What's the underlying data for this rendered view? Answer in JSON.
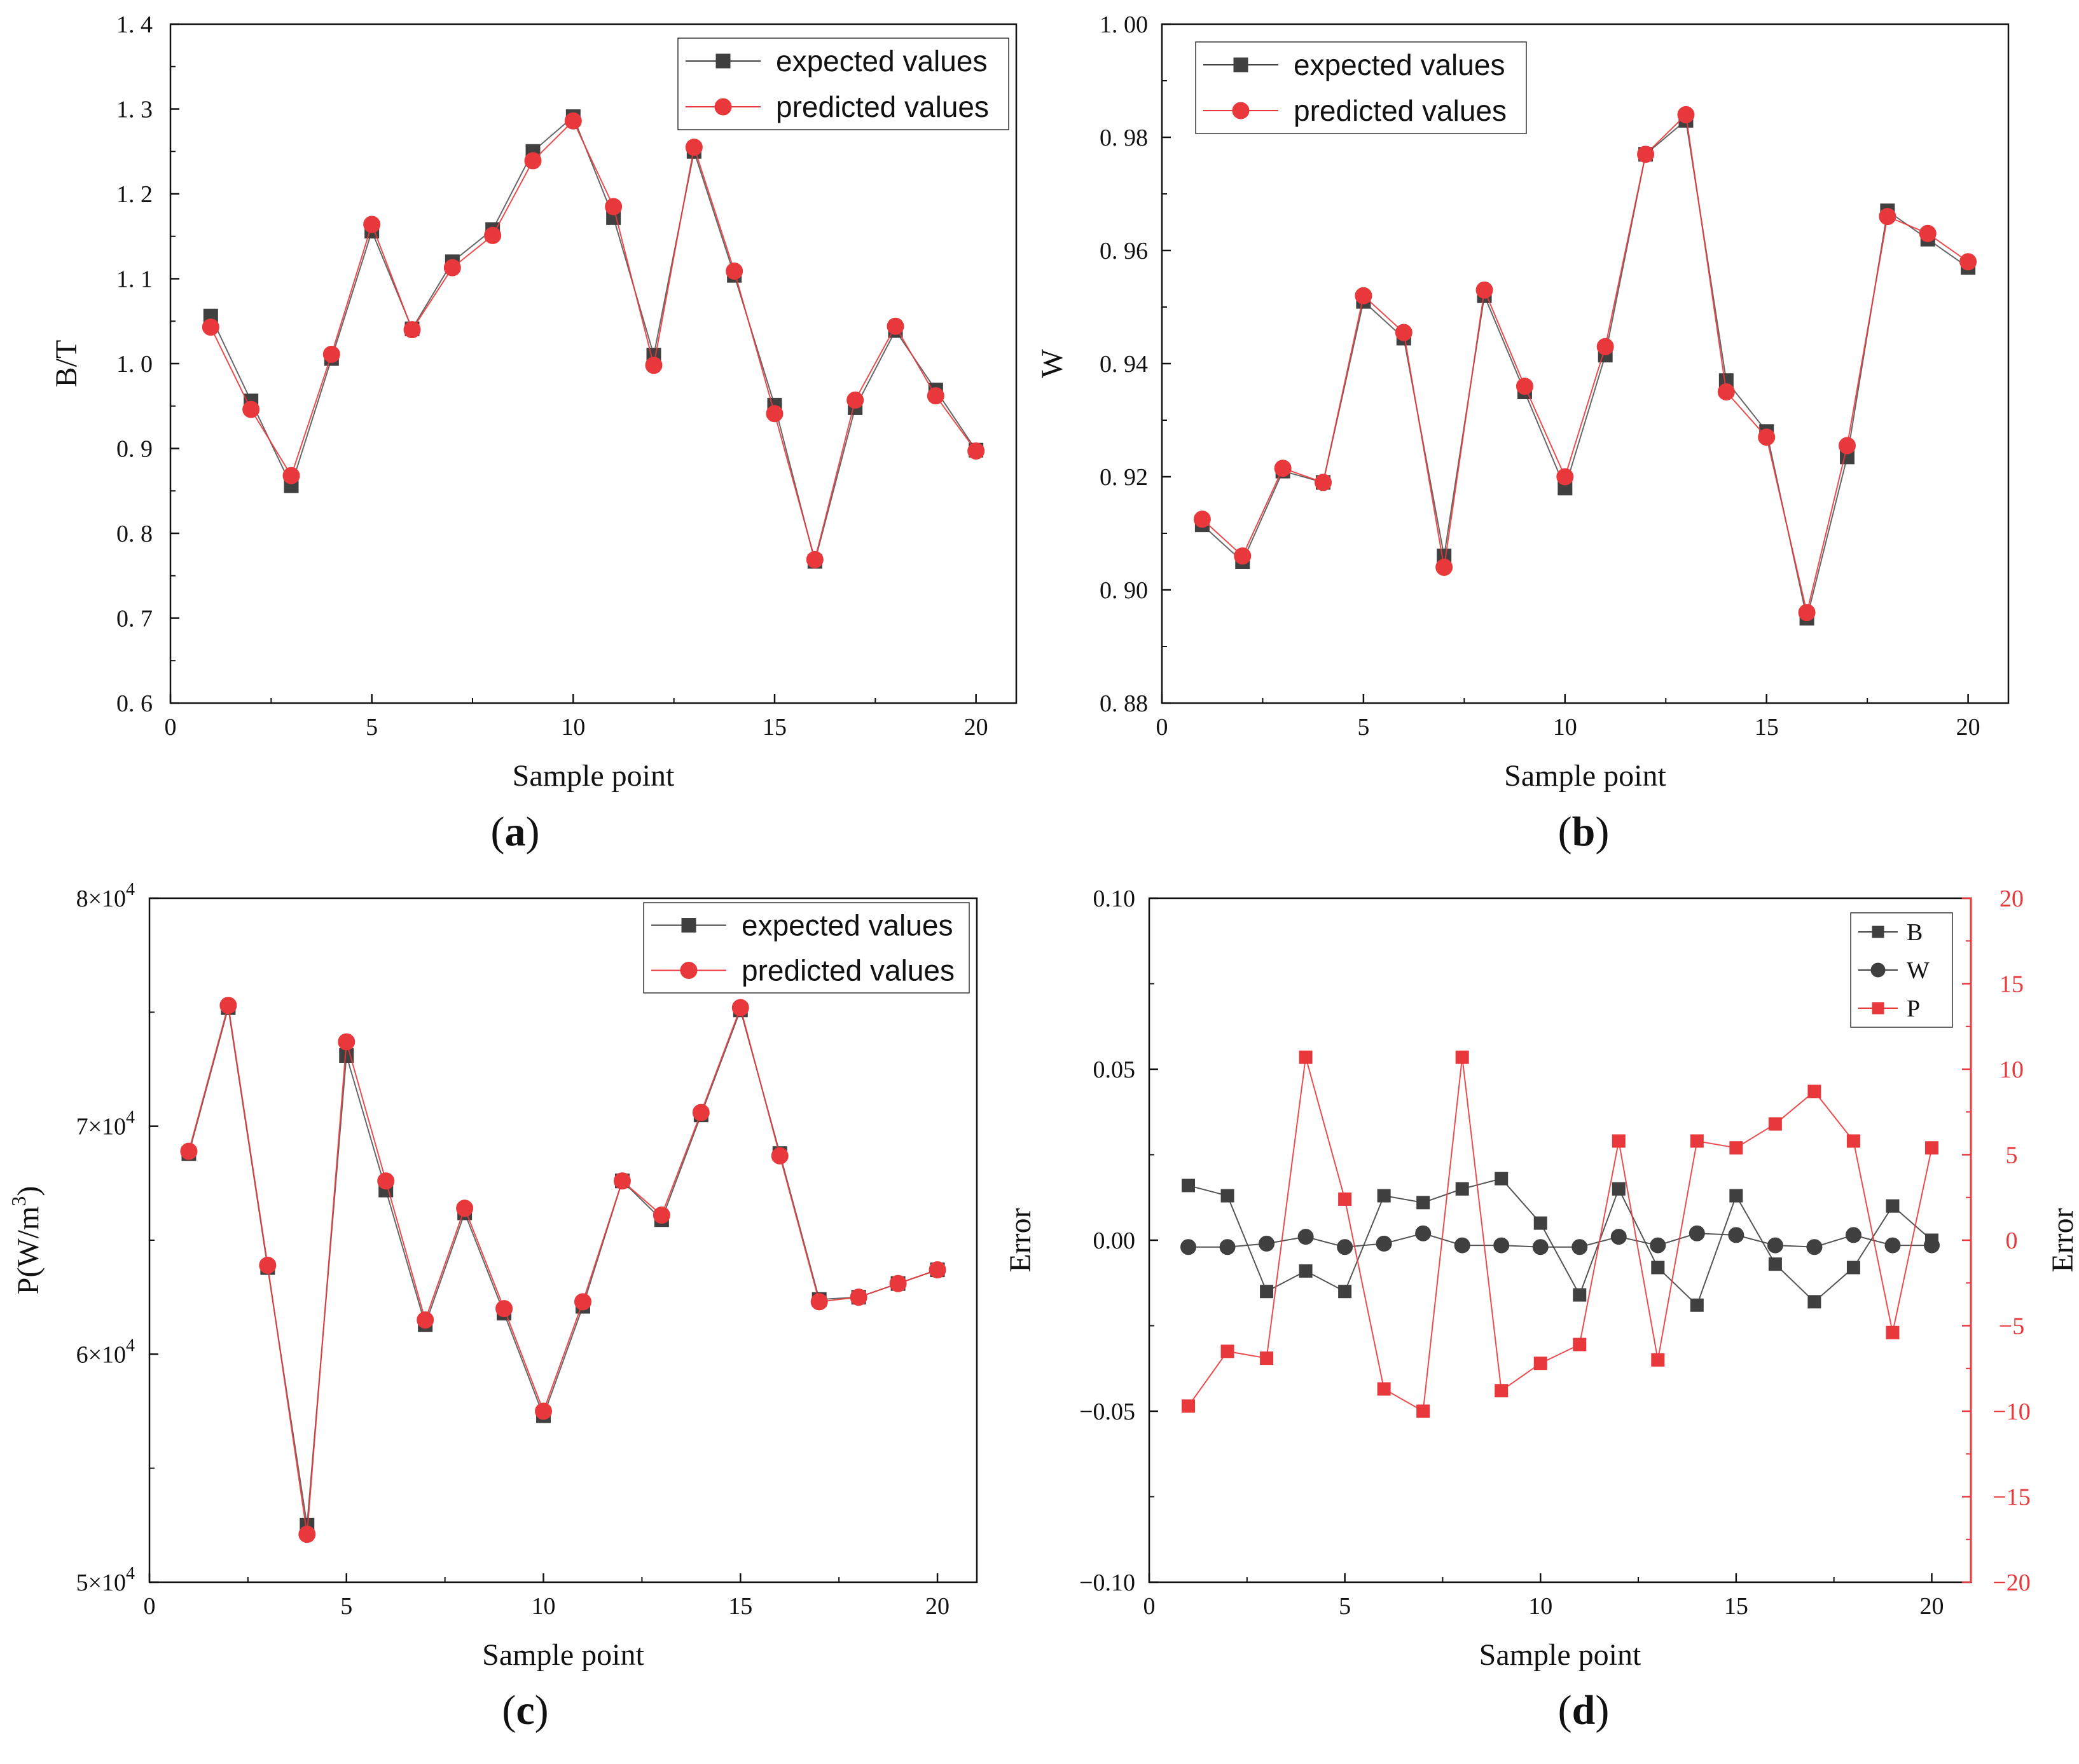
{
  "colors": {
    "expected": "#404040",
    "predicted": "#e8383b",
    "axis": "#111111"
  },
  "chart_data": [
    {
      "id": "a",
      "type": "line",
      "panel_label": {
        "open": "(",
        "letter": "a",
        "close": ")"
      },
      "xlabel": "Sample point",
      "ylabel": "B/T",
      "xlim": [
        0,
        21
      ],
      "ylim": [
        0.6,
        1.4
      ],
      "xticks": [
        0,
        5,
        10,
        15,
        20
      ],
      "xtick_labels": [
        "0",
        "5",
        "10",
        "15",
        "20"
      ],
      "yticks": [
        0.6,
        0.7,
        0.8,
        0.9,
        1.0,
        1.1,
        1.2,
        1.3,
        1.4
      ],
      "ytick_labels": [
        "0. 6",
        "0. 7",
        "0. 8",
        "0. 9",
        "1. 0",
        "1. 1",
        "1. 2",
        "1. 3",
        "1. 4"
      ],
      "legend": {
        "position": "top-right",
        "entries": [
          "expected values",
          "predicted values"
        ]
      },
      "x": [
        1,
        2,
        3,
        4,
        5,
        6,
        7,
        8,
        9,
        10,
        11,
        12,
        13,
        14,
        15,
        16,
        17,
        18,
        19,
        20
      ],
      "series": [
        {
          "name": "expected values",
          "marker": "square",
          "color": "#404040",
          "values": [
            1.056,
            0.956,
            0.856,
            1.006,
            1.156,
            1.041,
            1.12,
            1.158,
            1.25,
            1.291,
            1.172,
            1.01,
            1.25,
            1.104,
            0.951,
            0.767,
            0.948,
            1.039,
            0.969,
            0.898
          ]
        },
        {
          "name": "predicted values",
          "marker": "circle",
          "color": "#e8383b",
          "values": [
            1.043,
            0.946,
            0.868,
            1.011,
            1.164,
            1.04,
            1.113,
            1.151,
            1.239,
            1.286,
            1.185,
            0.998,
            1.255,
            1.109,
            0.941,
            0.769,
            0.957,
            1.044,
            0.962,
            0.897
          ]
        }
      ]
    },
    {
      "id": "b",
      "type": "line",
      "panel_label": {
        "open": "(",
        "letter": "b",
        "close": ")"
      },
      "xlabel": "Sample point",
      "ylabel": "W",
      "xlim": [
        0,
        21
      ],
      "ylim": [
        0.88,
        1.0
      ],
      "xticks": [
        0,
        5,
        10,
        15,
        20
      ],
      "xtick_labels": [
        "0",
        "5",
        "10",
        "15",
        "20"
      ],
      "yticks": [
        0.88,
        0.9,
        0.92,
        0.94,
        0.96,
        0.98,
        1.0
      ],
      "ytick_labels": [
        "0. 88",
        "0. 90",
        "0. 92",
        "0. 94",
        "0. 96",
        "0. 98",
        "1. 00"
      ],
      "legend": {
        "position": "top-left",
        "entries": [
          "expected values",
          "predicted values"
        ]
      },
      "x": [
        1,
        2,
        3,
        4,
        5,
        6,
        7,
        8,
        9,
        10,
        11,
        12,
        13,
        14,
        15,
        16,
        17,
        18,
        19,
        20
      ],
      "series": [
        {
          "name": "expected values",
          "marker": "square",
          "color": "#404040",
          "values": [
            0.9115,
            0.905,
            0.921,
            0.919,
            0.951,
            0.9445,
            0.906,
            0.952,
            0.935,
            0.918,
            0.9415,
            0.977,
            0.983,
            0.937,
            0.928,
            0.895,
            0.9235,
            0.967,
            0.962,
            0.957
          ]
        },
        {
          "name": "predicted values",
          "marker": "circle",
          "color": "#e8383b",
          "values": [
            0.9125,
            0.906,
            0.9215,
            0.919,
            0.952,
            0.9455,
            0.904,
            0.953,
            0.936,
            0.92,
            0.943,
            0.977,
            0.984,
            0.935,
            0.927,
            0.896,
            0.9255,
            0.966,
            0.963,
            0.958
          ]
        }
      ]
    },
    {
      "id": "c",
      "type": "line",
      "panel_label": {
        "open": "(",
        "letter": "c",
        "close": ")"
      },
      "xlabel": "Sample point",
      "ylabel": {
        "main": "P(W/m",
        "sup": "3",
        "end": ")"
      },
      "xlim": [
        0,
        21
      ],
      "ylim": [
        50000,
        80000
      ],
      "xticks": [
        0,
        5,
        10,
        15,
        20
      ],
      "xtick_labels": [
        "0",
        "5",
        "10",
        "15",
        "20"
      ],
      "yticks": [
        50000,
        60000,
        70000,
        80000
      ],
      "ytick_labels": [
        {
          "mant": "5",
          "times": "×",
          "base": "10",
          "exp": "4"
        },
        {
          "mant": "6",
          "times": "×",
          "base": "10",
          "exp": "4"
        },
        {
          "mant": "7",
          "times": "×",
          "base": "10",
          "exp": "4"
        },
        {
          "mant": "8",
          "times": "×",
          "base": "10",
          "exp": "4"
        }
      ],
      "legend": {
        "position": "top-right",
        "entries": [
          "expected values",
          "predicted values"
        ]
      },
      "x": [
        1,
        2,
        3,
        4,
        5,
        6,
        7,
        8,
        9,
        10,
        11,
        12,
        13,
        14,
        15,
        16,
        17,
        18,
        19,
        20
      ],
      "series": [
        {
          "name": "expected values",
          "marker": "square",
          "color": "#404040",
          "values": [
            68800,
            75200,
            63800,
            52500,
            73100,
            67200,
            61300,
            66200,
            61800,
            57300,
            62100,
            67600,
            65900,
            70500,
            75100,
            68800,
            62400,
            62500,
            63100,
            63700
          ]
        },
        {
          "name": "predicted values",
          "marker": "circle",
          "color": "#e8383b",
          "values": [
            68900,
            75300,
            63900,
            52100,
            73700,
            67600,
            61500,
            66400,
            62000,
            57500,
            62300,
            67600,
            66100,
            70600,
            75200,
            68700,
            62300,
            62500,
            63100,
            63700
          ]
        }
      ]
    },
    {
      "id": "d",
      "type": "line",
      "panel_label": {
        "open": "(",
        "letter": "d",
        "close": ")"
      },
      "xlabel": "Sample point",
      "ylabel": "Error",
      "ylabel_right": "Error",
      "xlim": [
        0,
        21
      ],
      "ylim": [
        -0.1,
        0.1
      ],
      "ylim_right": [
        -20,
        20
      ],
      "xticks": [
        0,
        5,
        10,
        15,
        20
      ],
      "xtick_labels": [
        "0",
        "5",
        "10",
        "15",
        "20"
      ],
      "yticks": [
        -0.1,
        -0.05,
        0.0,
        0.05,
        0.1
      ],
      "ytick_labels": [
        "−0.10",
        "−0.05",
        "0.00",
        "0.05",
        "0.10"
      ],
      "yticks_right": [
        -20,
        -15,
        -10,
        -5,
        0,
        5,
        10,
        15,
        20
      ],
      "ytick_labels_right": [
        "−20",
        "−15",
        "−10",
        "−5",
        "0",
        "5",
        "10",
        "15",
        "20"
      ],
      "legend": {
        "position": "top-right",
        "entries": [
          "B",
          "W",
          "P"
        ]
      },
      "x": [
        1,
        2,
        3,
        4,
        5,
        6,
        7,
        8,
        9,
        10,
        11,
        12,
        13,
        14,
        15,
        16,
        17,
        18,
        19,
        20
      ],
      "series": [
        {
          "name": "B",
          "marker": "square",
          "color": "#404040",
          "axis": "left",
          "values": [
            0.016,
            0.013,
            -0.015,
            -0.009,
            -0.015,
            0.013,
            0.011,
            0.015,
            0.018,
            0.005,
            -0.016,
            0.015,
            -0.008,
            -0.019,
            0.013,
            -0.007,
            -0.018,
            -0.008,
            0.01,
            0.0
          ]
        },
        {
          "name": "W",
          "marker": "circle",
          "color": "#404040",
          "axis": "left",
          "values": [
            -0.002,
            -0.002,
            -0.001,
            0.001,
            -0.002,
            -0.001,
            0.002,
            -0.0015,
            -0.0015,
            -0.002,
            -0.002,
            0.001,
            -0.0015,
            0.002,
            0.0015,
            -0.0015,
            -0.002,
            0.0015,
            -0.0015,
            -0.0015
          ]
        },
        {
          "name": "P",
          "marker": "square",
          "color": "#e8383b",
          "axis": "right",
          "values": [
            -9.7,
            -6.5,
            -6.9,
            10.7,
            2.4,
            -8.7,
            -10.0,
            10.7,
            -8.8,
            -7.2,
            -6.1,
            5.8,
            -7.0,
            5.8,
            5.4,
            6.8,
            8.7,
            5.8,
            -5.4,
            5.4
          ]
        }
      ]
    }
  ]
}
